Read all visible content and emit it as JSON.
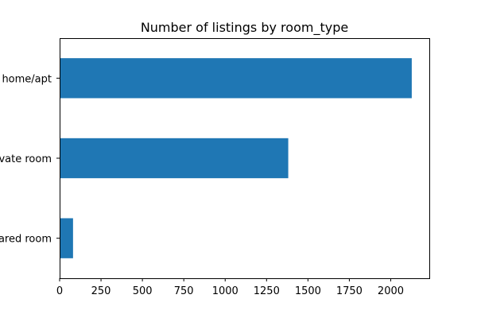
{
  "chart_data": {
    "type": "bar",
    "orientation": "horizontal",
    "title": "Number of listings by room_type",
    "categories": [
      "Entire home/apt",
      "Private room",
      "Shared room"
    ],
    "values": [
      2127,
      1381,
      81
    ],
    "xlabel": "",
    "ylabel": "",
    "xlim": [
      0,
      2233
    ],
    "xticks": [
      0,
      250,
      500,
      750,
      1000,
      1250,
      1500,
      1750,
      2000
    ],
    "grid": false,
    "legend": "none",
    "bar_color": "#1f77b4"
  }
}
